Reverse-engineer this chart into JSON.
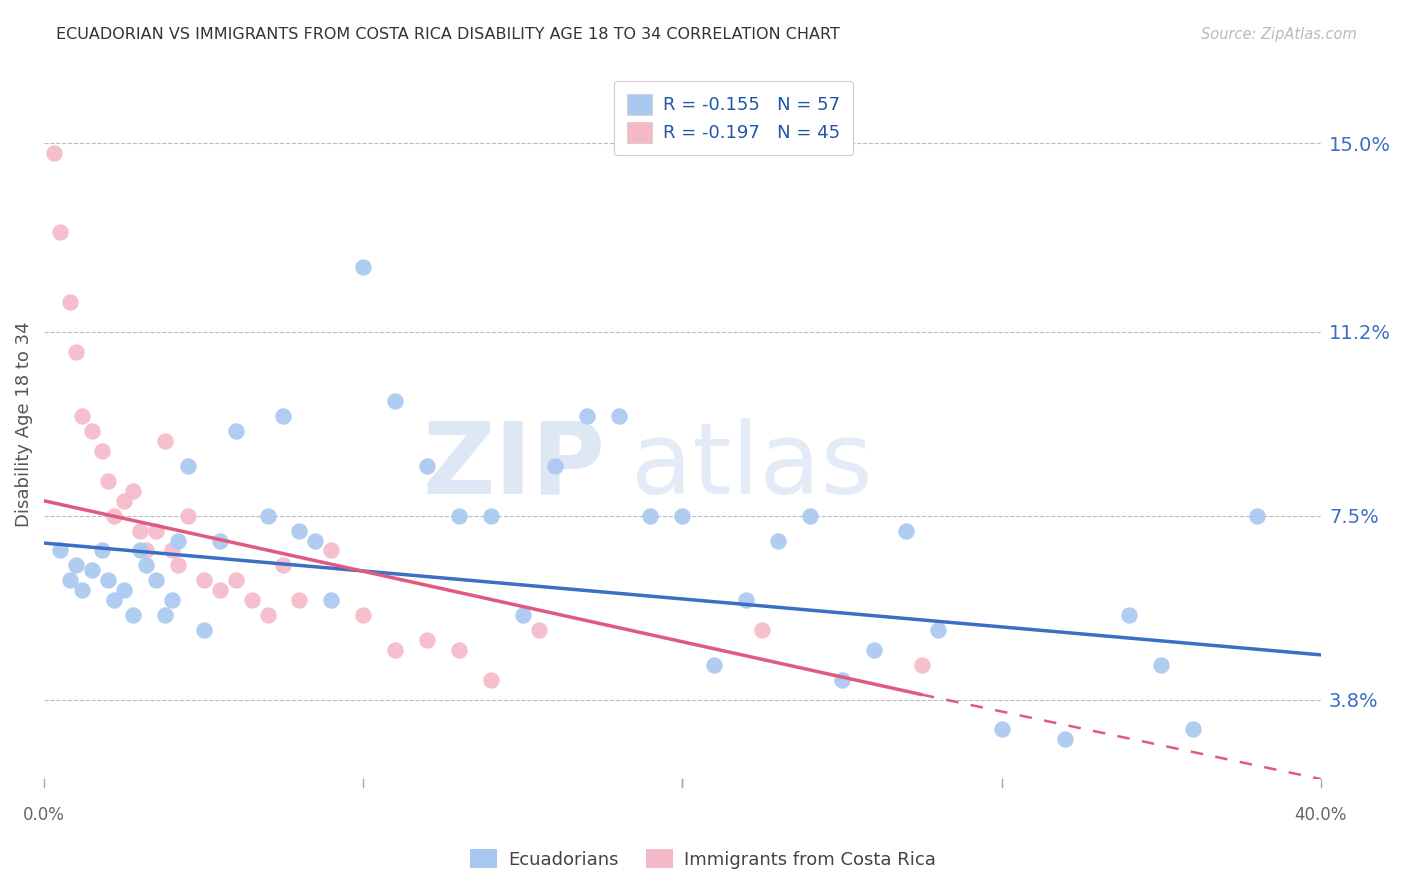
{
  "title": "ECUADORIAN VS IMMIGRANTS FROM COSTA RICA DISABILITY AGE 18 TO 34 CORRELATION CHART",
  "source": "Source: ZipAtlas.com",
  "ylabel": "Disability Age 18 to 34",
  "yticks": [
    3.8,
    7.5,
    11.2,
    15.0
  ],
  "ytick_labels": [
    "3.8%",
    "7.5%",
    "11.2%",
    "15.0%"
  ],
  "xmin": 0.0,
  "xmax": 40.0,
  "ymin": 2.2,
  "ymax": 16.5,
  "blue_color": "#a8c8f0",
  "pink_color": "#f5b8c8",
  "blue_line_color": "#3a6fc4",
  "pink_line_color": "#e05a80",
  "blue_R": -0.155,
  "blue_N": 57,
  "pink_R": -0.197,
  "pink_N": 45,
  "blue_scatter_x": [
    0.5,
    0.8,
    1.0,
    1.2,
    1.5,
    1.8,
    2.0,
    2.2,
    2.5,
    2.8,
    3.0,
    3.2,
    3.5,
    3.8,
    4.0,
    4.2,
    4.5,
    5.0,
    5.5,
    6.0,
    7.0,
    7.5,
    8.0,
    8.5,
    9.0,
    10.0,
    11.0,
    12.0,
    13.0,
    14.0,
    15.0,
    16.0,
    17.0,
    18.0,
    19.0,
    20.0,
    21.0,
    22.0,
    23.0,
    24.0,
    25.0,
    26.0,
    27.0,
    28.0,
    30.0,
    32.0,
    34.0,
    35.0,
    36.0,
    38.0
  ],
  "blue_scatter_y": [
    6.8,
    6.2,
    6.5,
    6.0,
    6.4,
    6.8,
    6.2,
    5.8,
    6.0,
    5.5,
    6.8,
    6.5,
    6.2,
    5.5,
    5.8,
    7.0,
    8.5,
    5.2,
    7.0,
    9.2,
    7.5,
    9.5,
    7.2,
    7.0,
    5.8,
    12.5,
    9.8,
    8.5,
    7.5,
    7.5,
    5.5,
    8.5,
    9.5,
    9.5,
    7.5,
    7.5,
    4.5,
    5.8,
    7.0,
    7.5,
    4.2,
    4.8,
    7.2,
    5.2,
    3.2,
    3.0,
    5.5,
    4.5,
    3.2,
    7.5
  ],
  "pink_scatter_x": [
    0.3,
    0.5,
    0.8,
    1.0,
    1.2,
    1.5,
    1.8,
    2.0,
    2.2,
    2.5,
    2.8,
    3.0,
    3.2,
    3.5,
    3.8,
    4.0,
    4.2,
    4.5,
    5.0,
    5.5,
    6.0,
    6.5,
    7.0,
    7.5,
    8.0,
    9.0,
    10.0,
    11.0,
    12.0,
    13.0,
    14.0,
    15.5,
    22.5,
    27.5
  ],
  "pink_scatter_y": [
    14.8,
    13.2,
    11.8,
    10.8,
    9.5,
    9.2,
    8.8,
    8.2,
    7.5,
    7.8,
    8.0,
    7.2,
    6.8,
    7.2,
    9.0,
    6.8,
    6.5,
    7.5,
    6.2,
    6.0,
    6.2,
    5.8,
    5.5,
    6.5,
    5.8,
    6.8,
    5.5,
    4.8,
    5.0,
    4.8,
    4.2,
    5.2,
    5.2,
    4.5
  ],
  "blue_line_x0": 0.0,
  "blue_line_y0": 6.95,
  "blue_line_x1": 40.0,
  "blue_line_y1": 4.7,
  "pink_line_x0": 0.0,
  "pink_line_y0": 7.8,
  "pink_line_x1_solid": 27.5,
  "pink_line_y1_solid": 3.9,
  "pink_line_x1_dash": 40.0,
  "pink_line_y1_dash": 2.2,
  "watermark_zip": "ZIP",
  "watermark_atlas": "atlas",
  "legend_blue_label": "R = -0.155   N = 57",
  "legend_pink_label": "R = -0.197   N = 45",
  "bottom_legend_blue": "Ecuadorians",
  "bottom_legend_pink": "Immigrants from Costa Rica"
}
